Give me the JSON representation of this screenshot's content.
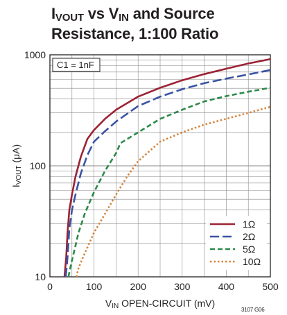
{
  "title": {
    "line1_pre": "I",
    "line1_sub1": "VOUT",
    "line1_mid": " vs V",
    "line1_sub2": "IN",
    "line1_post": " and Source",
    "line2": "Resistance, 1:100 Ratio"
  },
  "figure_id": "3107 G06",
  "chart_data": {
    "type": "line",
    "xlabel": {
      "main": "V",
      "sub": "IN",
      "rest": " OPEN-CIRCUIT (mV)"
    },
    "ylabel": {
      "main": "I",
      "sub": "VOUT",
      "rest": " (μA)"
    },
    "xlim": [
      0,
      500
    ],
    "ylim": [
      10,
      1000
    ],
    "yscale": "log",
    "x_ticks": [
      "0",
      "100",
      "200",
      "300",
      "400",
      "500"
    ],
    "y_ticks": [
      "10",
      "100",
      "1000"
    ],
    "grid": true,
    "annotation": "C1 = 1nF",
    "legend_position": "bottom-right",
    "series": [
      {
        "name": "1Ω",
        "color": "#9b2335",
        "dash": "solid",
        "points": [
          [
            33,
            10
          ],
          [
            37,
            15
          ],
          [
            40,
            25
          ],
          [
            44,
            40
          ],
          [
            50,
            55
          ],
          [
            58,
            80
          ],
          [
            70,
            120
          ],
          [
            85,
            175
          ],
          [
            100,
            210
          ],
          [
            125,
            265
          ],
          [
            150,
            320
          ],
          [
            200,
            420
          ],
          [
            250,
            505
          ],
          [
            300,
            590
          ],
          [
            350,
            670
          ],
          [
            400,
            750
          ],
          [
            450,
            835
          ],
          [
            500,
            915
          ]
        ]
      },
      {
        "name": "2Ω",
        "color": "#3a53a4",
        "dash": "long-dash",
        "points": [
          [
            36,
            10
          ],
          [
            40,
            15
          ],
          [
            44,
            27
          ],
          [
            50,
            40
          ],
          [
            58,
            55
          ],
          [
            70,
            85
          ],
          [
            85,
            125
          ],
          [
            100,
            165
          ],
          [
            125,
            205
          ],
          [
            150,
            250
          ],
          [
            200,
            345
          ],
          [
            250,
            420
          ],
          [
            300,
            490
          ],
          [
            350,
            555
          ],
          [
            400,
            610
          ],
          [
            450,
            665
          ],
          [
            500,
            730
          ]
        ]
      },
      {
        "name": "5Ω",
        "color": "#2d8a4a",
        "dash": "dashed",
        "points": [
          [
            42,
            10
          ],
          [
            48,
            13
          ],
          [
            55,
            17
          ],
          [
            65,
            25
          ],
          [
            80,
            38
          ],
          [
            100,
            58
          ],
          [
            125,
            90
          ],
          [
            150,
            130
          ],
          [
            160,
            160
          ],
          [
            200,
            200
          ],
          [
            250,
            265
          ],
          [
            300,
            320
          ],
          [
            350,
            380
          ],
          [
            400,
            425
          ],
          [
            450,
            465
          ],
          [
            500,
            505
          ]
        ]
      },
      {
        "name": "10Ω",
        "color": "#d4843c",
        "dash": "dotted",
        "points": [
          [
            60,
            10
          ],
          [
            65,
            12
          ],
          [
            75,
            15
          ],
          [
            100,
            25
          ],
          [
            125,
            37
          ],
          [
            150,
            55
          ],
          [
            175,
            80
          ],
          [
            200,
            110
          ],
          [
            250,
            165
          ],
          [
            300,
            200
          ],
          [
            350,
            235
          ],
          [
            400,
            265
          ],
          [
            450,
            300
          ],
          [
            500,
            340
          ]
        ]
      }
    ]
  }
}
